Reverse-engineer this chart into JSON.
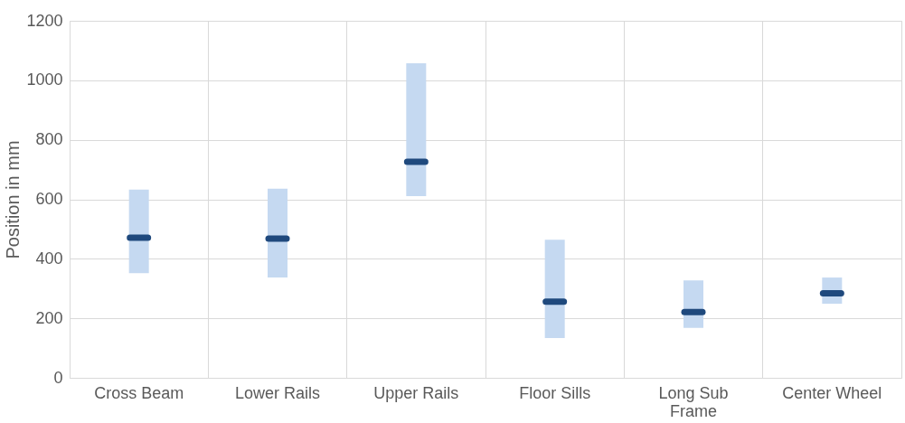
{
  "chart_data": {
    "type": "box",
    "ylabel": "Position in mm",
    "categories": [
      "Cross Beam",
      "Lower Rails",
      "Upper Rails",
      "Floor Sills",
      "Long Sub Frame",
      "Center Wheel"
    ],
    "series": [
      {
        "color": "#c5d9f1",
        "boxes": [
          {
            "low": 352,
            "q1": 352,
            "median": 471,
            "q3": 633,
            "high": 633
          },
          {
            "low": 337,
            "q1": 337,
            "median": 468,
            "q3": 636,
            "high": 636
          },
          {
            "low": 611,
            "q1": 611,
            "median": 726,
            "q3": 1057,
            "high": 1057
          },
          {
            "low": 134,
            "q1": 134,
            "median": 256,
            "q3": 464,
            "high": 464
          },
          {
            "low": 168,
            "q1": 168,
            "median": 221,
            "q3": 327,
            "high": 327
          },
          {
            "low": 249,
            "q1": 249,
            "median": 284,
            "q3": 337,
            "high": 337
          }
        ]
      }
    ],
    "ylim": [
      0,
      1200
    ],
    "yticks": [
      0,
      200,
      400,
      600,
      800,
      1000,
      1200
    ],
    "grid": true
  }
}
